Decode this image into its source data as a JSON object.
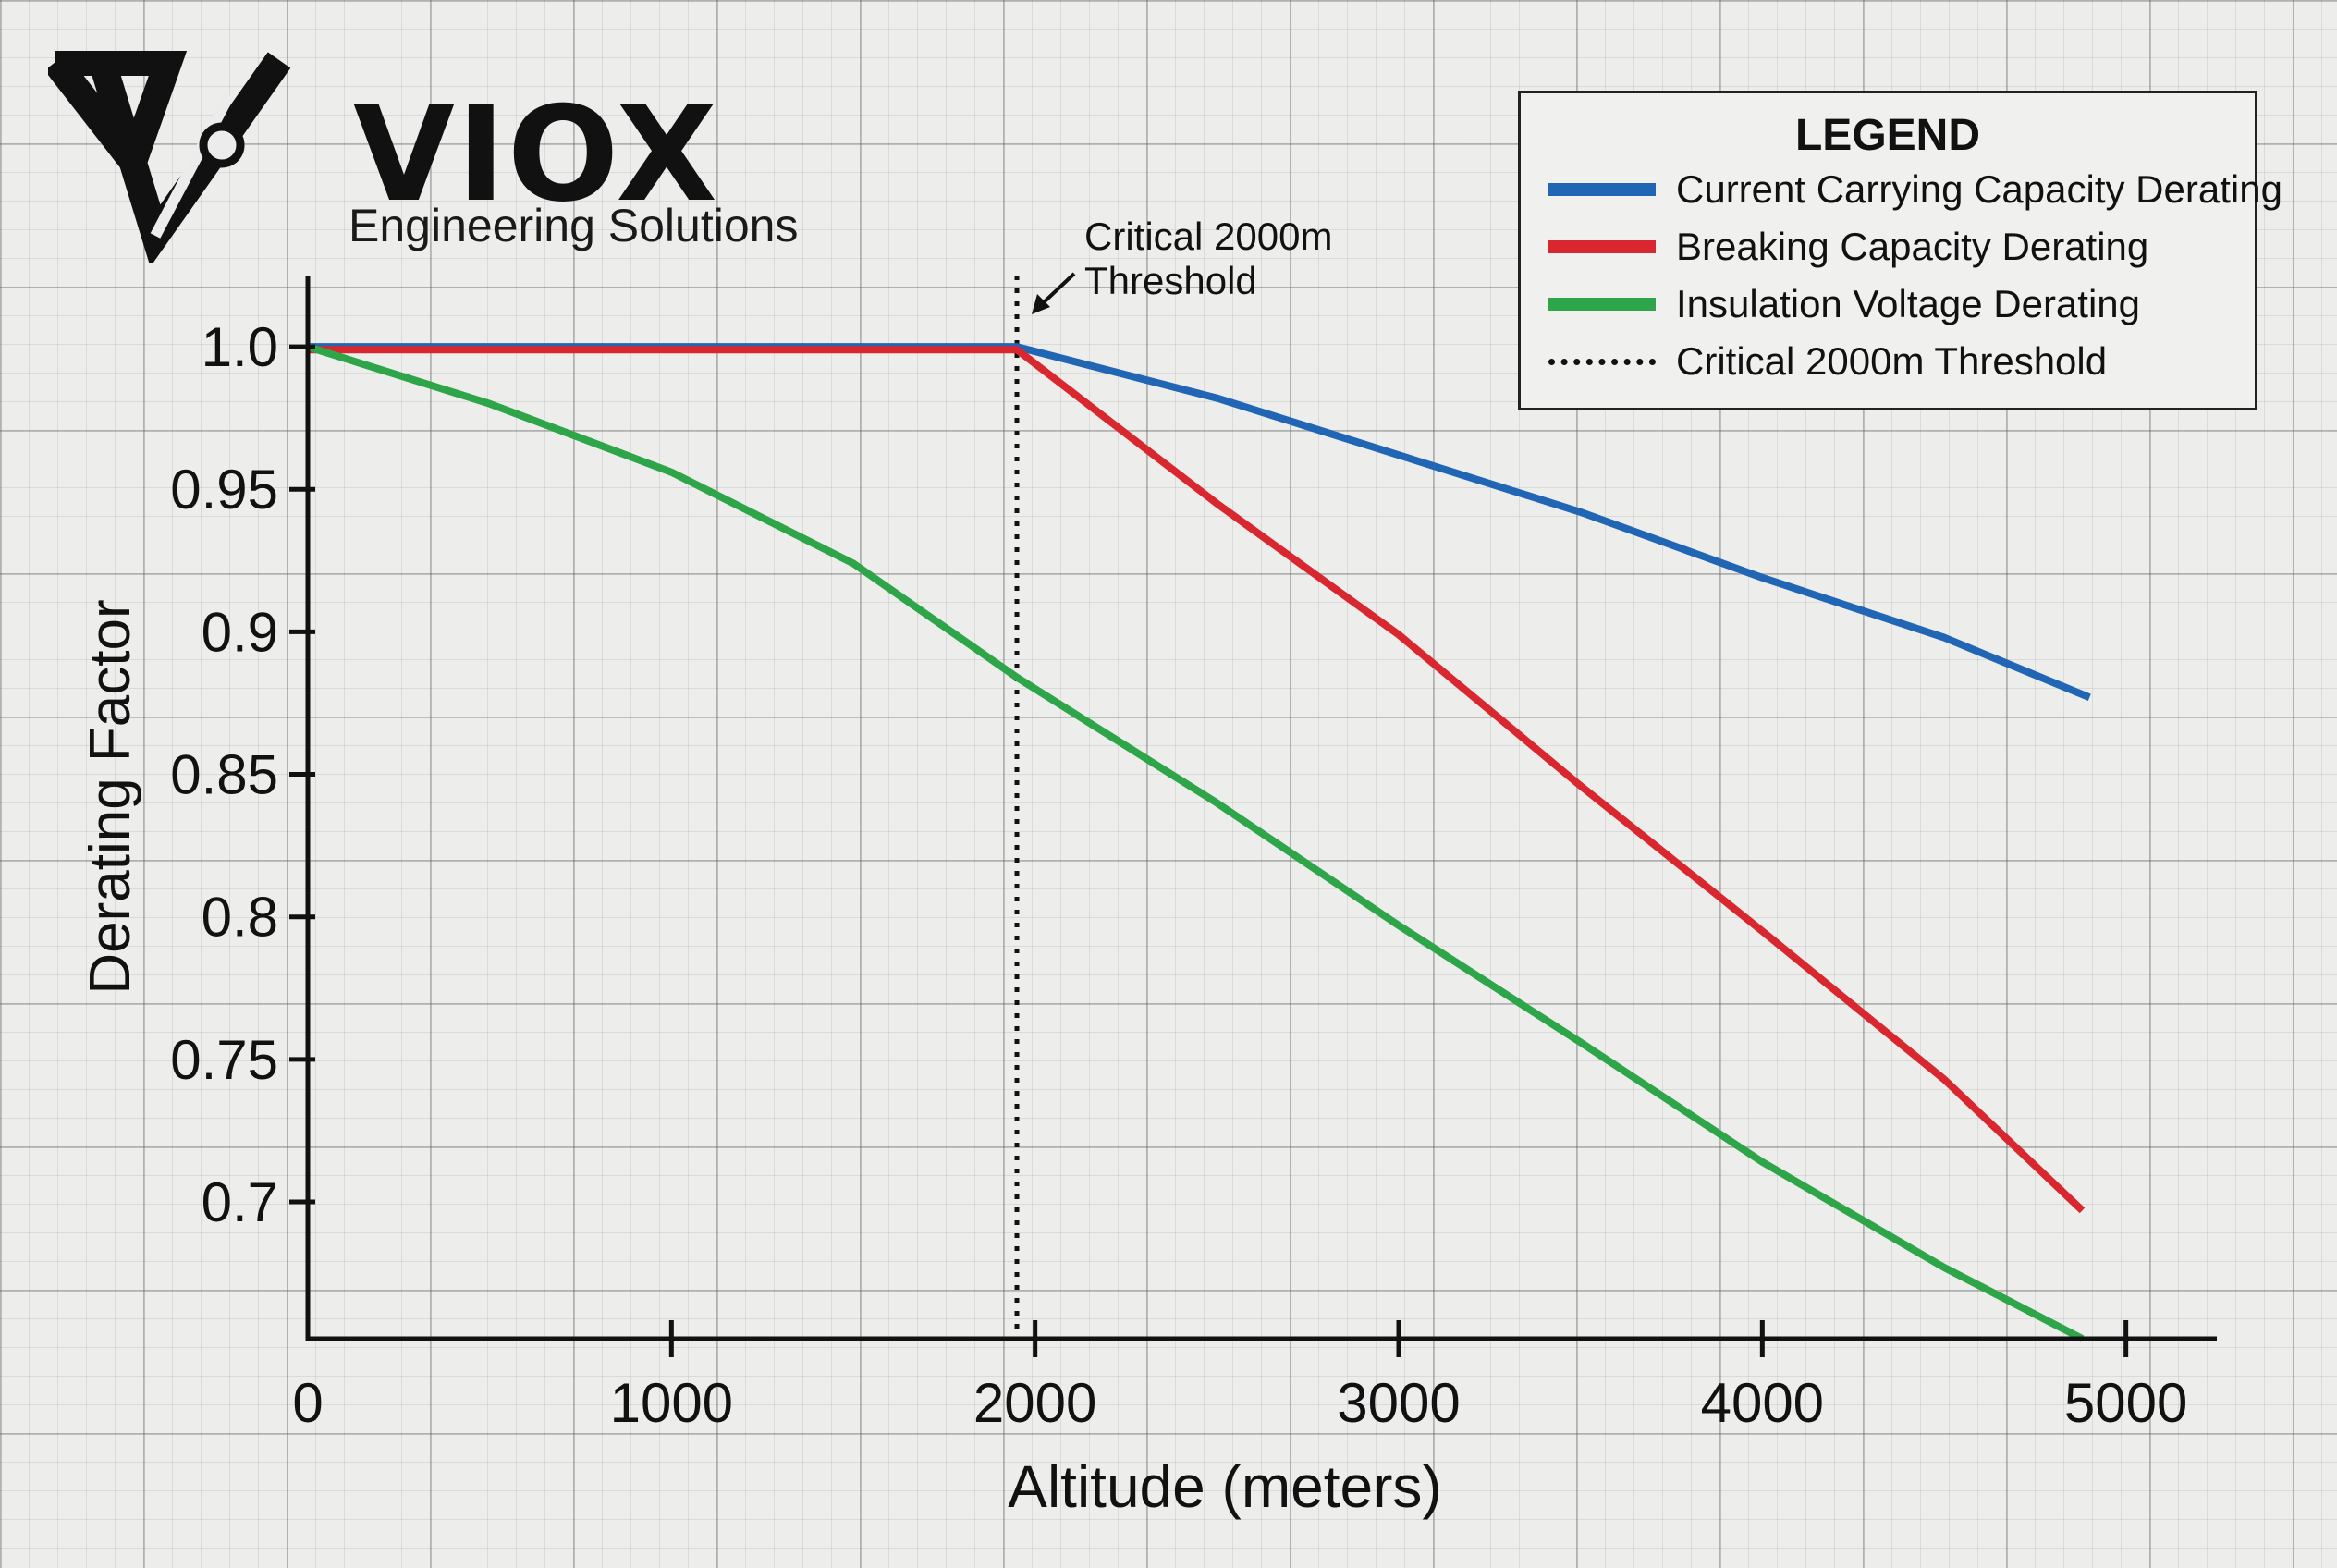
{
  "brand": {
    "name": "VIOX",
    "tagline": "Engineering Solutions"
  },
  "legend": {
    "title": "LEGEND",
    "items": [
      {
        "label": "Current Carrying Capacity Derating",
        "color": "#2166b5",
        "style": "solid"
      },
      {
        "label": "Breaking Capacity Derating",
        "color": "#d8272e",
        "style": "solid"
      },
      {
        "label": "Insulation Voltage Derating",
        "color": "#2ea549",
        "style": "solid"
      },
      {
        "label": "Critical 2000m Threshold",
        "color": "#111111",
        "style": "dotted"
      }
    ]
  },
  "chart_data": {
    "type": "line",
    "title": "",
    "xlabel": "Altitude (meters)",
    "ylabel": "Derating Factor",
    "xlim": [
      0,
      5250
    ],
    "ylim": [
      0.652,
      1.025
    ],
    "xticks": [
      0,
      1000,
      2000,
      3000,
      4000,
      5000
    ],
    "yticks": [
      1.0,
      0.95,
      0.9,
      0.85,
      0.8,
      0.75,
      0.7
    ],
    "ytick_labels": [
      "1.0",
      "0.95",
      "0.9",
      "0.85",
      "0.8",
      "0.75",
      "0.7"
    ],
    "grid": true,
    "series": [
      {
        "name": "Current Carrying Capacity Derating",
        "color": "#2166b5",
        "x": [
          0,
          1950,
          2500,
          3000,
          3500,
          4000,
          4500,
          4900
        ],
        "y": [
          1.0,
          1.0,
          0.982,
          0.962,
          0.942,
          0.919,
          0.898,
          0.877
        ]
      },
      {
        "name": "Breaking Capacity Derating",
        "color": "#d8272e",
        "x": [
          0,
          1950,
          2500,
          3000,
          3500,
          4000,
          4500,
          4880
        ],
        "y": [
          0.999,
          0.999,
          0.945,
          0.899,
          0.846,
          0.795,
          0.743,
          0.697
        ]
      },
      {
        "name": "Insulation Voltage Derating",
        "color": "#2ea549",
        "x": [
          0,
          500,
          1000,
          1500,
          1950,
          2500,
          3000,
          3500,
          4000,
          4500,
          4880
        ],
        "y": [
          1.0,
          0.98,
          0.956,
          0.924,
          0.884,
          0.84,
          0.797,
          0.756,
          0.714,
          0.677,
          0.652
        ]
      }
    ],
    "threshold": {
      "x": 1950,
      "label_line1": "Critical 2000m",
      "label_line2": "Threshold"
    }
  }
}
